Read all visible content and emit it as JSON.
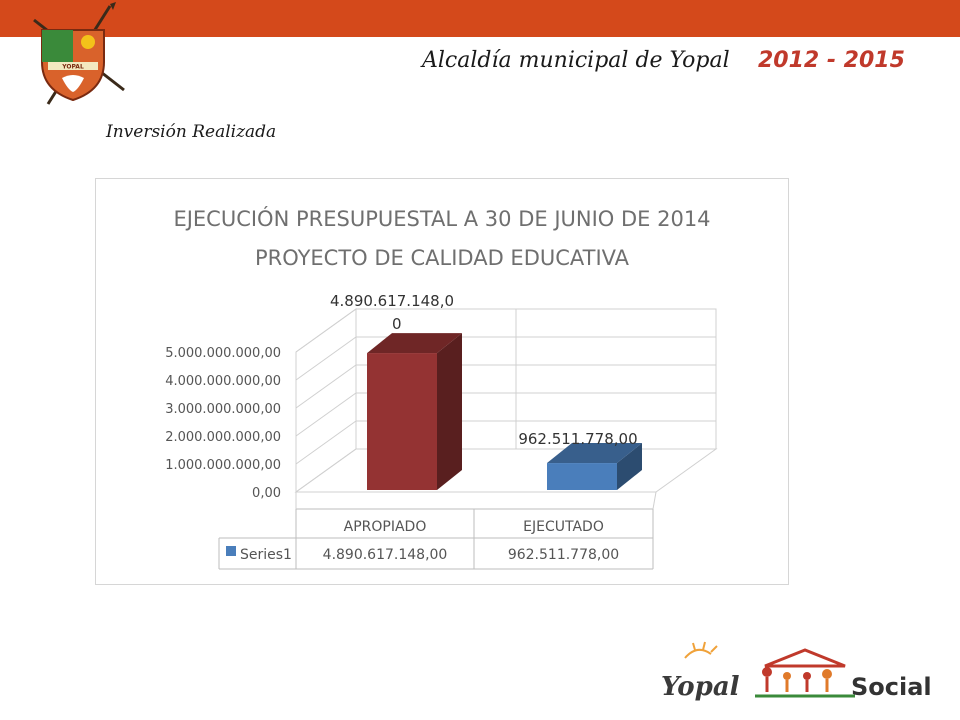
{
  "header": {
    "title": "Alcaldía municipal de Yopal",
    "years": "2012 - 2015",
    "bar_color": "#d4491b"
  },
  "subtitle": "Inversión Realizada",
  "crest": {
    "text": "YOPAL",
    "icon": "municipal-crest-icon"
  },
  "logo": {
    "word1": "Yopal",
    "word2": "Social",
    "icon": "yopal-social-logo"
  },
  "chart_data": {
    "type": "bar",
    "title_line1": "EJECUCIÓN PRESUPUESTAL A 30 DE JUNIO DE 2014",
    "title_line2": "PROYECTO DE CALIDAD EDUCATIVA",
    "categories": [
      "APROPIADO",
      "EJECUTADO"
    ],
    "series": [
      {
        "name": "Series1",
        "values": [
          4890617148.0,
          962511778.0
        ]
      }
    ],
    "bar_colors": [
      "#943333",
      "#4a7ebb"
    ],
    "data_labels": [
      "4.890.617.148,00",
      "962.511.778,00"
    ],
    "table_values": [
      "4.890.617.148,00",
      "962.511.778,00"
    ],
    "y_ticks": [
      "0,00",
      "1.000.000.000,00",
      "2.000.000.000,00",
      "3.000.000.000,00",
      "4.000.000.000,00",
      "5.000.000.000,00"
    ],
    "ylim": [
      0,
      5000000000
    ],
    "grid": true,
    "legend": "data-table"
  }
}
